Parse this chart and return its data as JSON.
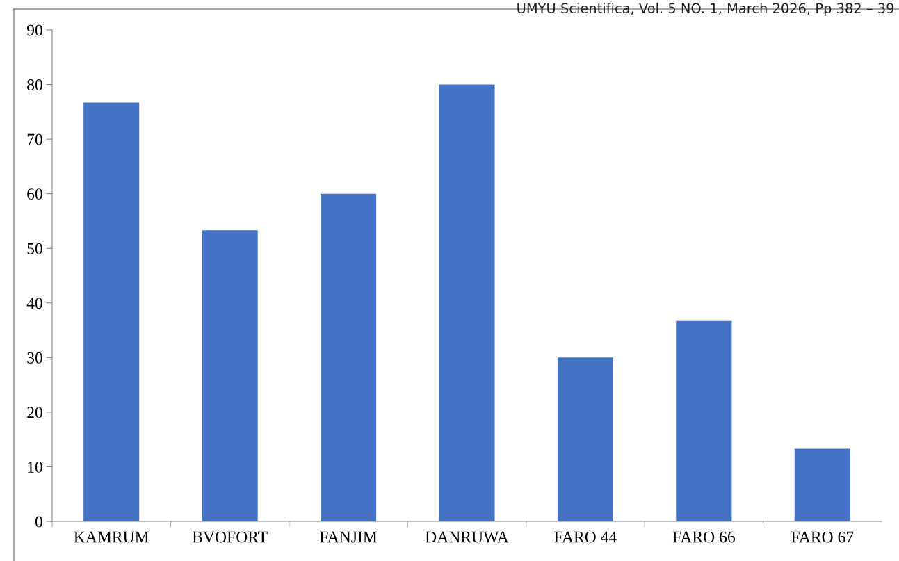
{
  "chart_data": {
    "type": "bar",
    "categories": [
      "KAMRUM",
      "BVOFORT",
      "FANJIM",
      "DANRUWA",
      "FARO 44",
      "FARO 66",
      "FARO 67"
    ],
    "values": [
      76.7,
      53.3,
      60,
      80,
      30,
      36.7,
      13.3
    ],
    "color": "#4472c4",
    "ylim": [
      0,
      90
    ],
    "yticks": [
      0,
      10,
      20,
      30,
      40,
      50,
      60,
      70,
      80,
      90
    ],
    "annotations": [
      "UMYU Scientifica, Vol. 5 NO. 1, March 2026, Pp 382 – 39"
    ]
  }
}
